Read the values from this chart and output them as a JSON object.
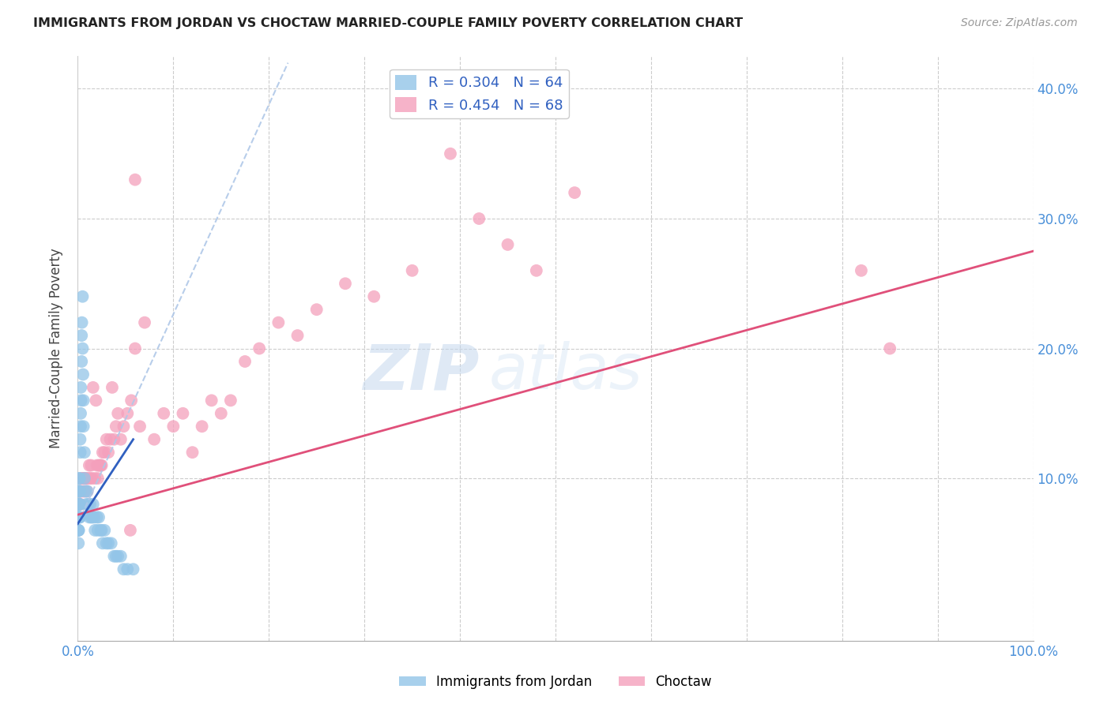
{
  "title": "IMMIGRANTS FROM JORDAN VS CHOCTAW MARRIED-COUPLE FAMILY POVERTY CORRELATION CHART",
  "source": "Source: ZipAtlas.com",
  "ylabel": "Married-Couple Family Poverty",
  "series1_label": "Immigrants from Jordan",
  "series1_R": "R = 0.304",
  "series1_N": "N = 64",
  "series1_color": "#93c5e8",
  "series2_label": "Choctaw",
  "series2_R": "R = 0.454",
  "series2_N": "N = 68",
  "series2_color": "#f4a0bc",
  "trend1_color": "#3060c0",
  "trend1_dash_color": "#b0c8e8",
  "trend2_color": "#e0507a",
  "watermark_ZIP": "ZIP",
  "watermark_atlas": "atlas",
  "background_color": "#ffffff",
  "grid_color": "#dddddd",
  "xmin": 0.0,
  "xmax": 1.0,
  "ymin": -0.025,
  "ymax": 0.425,
  "right_yticks": [
    0.1,
    0.2,
    0.3,
    0.4
  ],
  "right_yticklabels": [
    "10.0%",
    "20.0%",
    "30.0%",
    "40.0%"
  ],
  "jordan_x": [
    0.0003,
    0.0005,
    0.0006,
    0.0007,
    0.0008,
    0.001,
    0.001,
    0.001,
    0.001,
    0.0012,
    0.0013,
    0.0014,
    0.0015,
    0.0016,
    0.0017,
    0.0018,
    0.002,
    0.002,
    0.0022,
    0.0023,
    0.0025,
    0.0027,
    0.003,
    0.003,
    0.0032,
    0.0035,
    0.004,
    0.004,
    0.0043,
    0.005,
    0.005,
    0.0055,
    0.006,
    0.006,
    0.007,
    0.007,
    0.008,
    0.009,
    0.01,
    0.011,
    0.012,
    0.013,
    0.014,
    0.015,
    0.016,
    0.017,
    0.018,
    0.02,
    0.021,
    0.022,
    0.024,
    0.025,
    0.026,
    0.028,
    0.03,
    0.032,
    0.035,
    0.038,
    0.04,
    0.042,
    0.045,
    0.048,
    0.052,
    0.058
  ],
  "jordan_y": [
    0.08,
    0.06,
    0.07,
    0.05,
    0.06,
    0.09,
    0.08,
    0.07,
    0.06,
    0.1,
    0.09,
    0.08,
    0.07,
    0.09,
    0.08,
    0.07,
    0.1,
    0.08,
    0.09,
    0.07,
    0.13,
    0.12,
    0.15,
    0.14,
    0.17,
    0.16,
    0.21,
    0.19,
    0.22,
    0.24,
    0.2,
    0.18,
    0.16,
    0.14,
    0.12,
    0.1,
    0.09,
    0.08,
    0.09,
    0.08,
    0.07,
    0.08,
    0.07,
    0.07,
    0.08,
    0.07,
    0.06,
    0.07,
    0.06,
    0.07,
    0.06,
    0.06,
    0.05,
    0.06,
    0.05,
    0.05,
    0.05,
    0.04,
    0.04,
    0.04,
    0.04,
    0.03,
    0.03,
    0.03
  ],
  "choctaw_x": [
    0.001,
    0.002,
    0.003,
    0.003,
    0.004,
    0.005,
    0.005,
    0.006,
    0.007,
    0.008,
    0.009,
    0.01,
    0.011,
    0.012,
    0.013,
    0.014,
    0.015,
    0.016,
    0.018,
    0.019,
    0.02,
    0.021,
    0.022,
    0.023,
    0.024,
    0.025,
    0.026,
    0.028,
    0.03,
    0.032,
    0.034,
    0.036,
    0.038,
    0.04,
    0.042,
    0.045,
    0.048,
    0.052,
    0.056,
    0.06,
    0.065,
    0.07,
    0.08,
    0.09,
    0.1,
    0.11,
    0.12,
    0.13,
    0.14,
    0.15,
    0.16,
    0.175,
    0.19,
    0.21,
    0.23,
    0.25,
    0.28,
    0.31,
    0.35,
    0.39,
    0.42,
    0.45,
    0.48,
    0.52,
    0.82,
    0.85,
    0.06,
    0.055
  ],
  "choctaw_y": [
    0.08,
    0.09,
    0.09,
    0.08,
    0.1,
    0.1,
    0.09,
    0.1,
    0.09,
    0.1,
    0.1,
    0.09,
    0.1,
    0.11,
    0.1,
    0.11,
    0.1,
    0.17,
    0.1,
    0.16,
    0.11,
    0.1,
    0.11,
    0.11,
    0.11,
    0.11,
    0.12,
    0.12,
    0.13,
    0.12,
    0.13,
    0.17,
    0.13,
    0.14,
    0.15,
    0.13,
    0.14,
    0.15,
    0.16,
    0.2,
    0.14,
    0.22,
    0.13,
    0.15,
    0.14,
    0.15,
    0.12,
    0.14,
    0.16,
    0.15,
    0.16,
    0.19,
    0.2,
    0.22,
    0.21,
    0.23,
    0.25,
    0.24,
    0.26,
    0.35,
    0.3,
    0.28,
    0.26,
    0.32,
    0.26,
    0.2,
    0.33,
    0.06
  ],
  "trend2_x0": 0.0,
  "trend2_y0": 0.072,
  "trend2_x1": 1.0,
  "trend2_y1": 0.275,
  "trend1_x0": 0.0,
  "trend1_y0": 0.065,
  "trend1_x1": 0.058,
  "trend1_y1": 0.13,
  "trend1_dash_x0": 0.0,
  "trend1_dash_y0": 0.065,
  "trend1_dash_x1": 0.22,
  "trend1_dash_y1": 0.42
}
